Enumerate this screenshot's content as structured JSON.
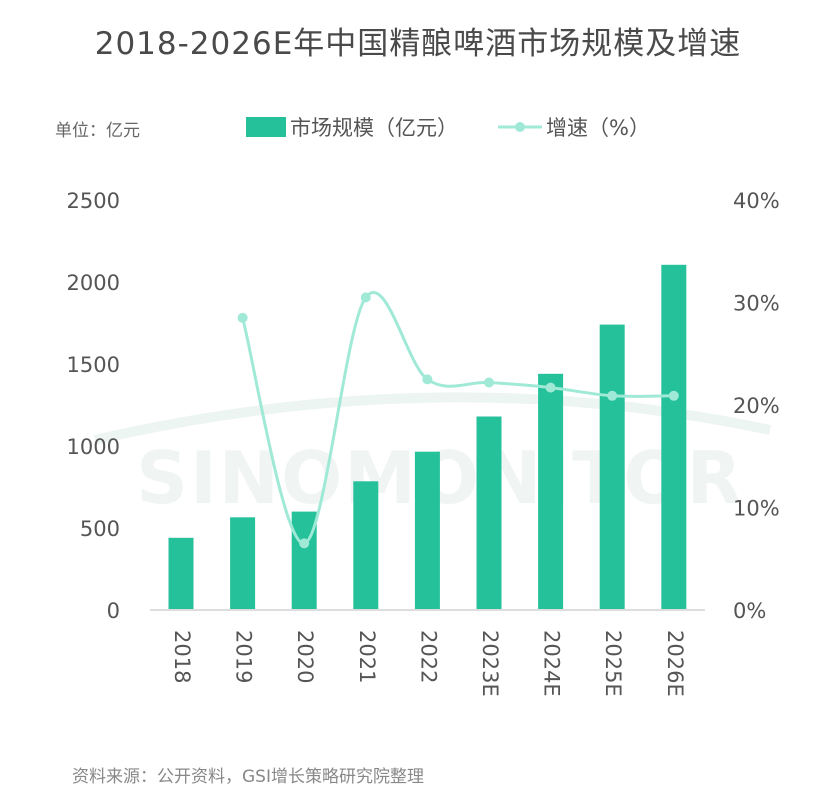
{
  "title": "2018-2026E年中国精酿啤酒市场规模及增速",
  "unit_label": "单位：亿元",
  "source": "资料来源：公开资料，GSI增长策略研究院整理",
  "watermark": "SINOMONITOR",
  "colors": {
    "bar": "#24c19b",
    "line": "#9fe9d6",
    "axis": "#dddddd"
  },
  "chart_data": {
    "type": "bar",
    "title": "2018-2026E年中国精酿啤酒市场规模及增速",
    "categories": [
      "2018",
      "2019",
      "2020",
      "2021",
      "2022",
      "2023E",
      "2024E",
      "2025E",
      "2026E"
    ],
    "series": [
      {
        "name": "市场规模（亿元）",
        "type": "bar",
        "axis": "left",
        "values": [
          440,
          565,
          600,
          785,
          965,
          1180,
          1440,
          1740,
          2105
        ]
      },
      {
        "name": "增速（%）",
        "type": "line",
        "axis": "right",
        "values": [
          null,
          28.5,
          6.5,
          30.5,
          22.5,
          22.2,
          21.7,
          20.9,
          20.9
        ]
      }
    ],
    "left_axis": {
      "ylim": [
        0,
        2500
      ],
      "ticks": [
        "0",
        "500",
        "1000",
        "1500",
        "2000",
        "2500"
      ]
    },
    "right_axis": {
      "ylim": [
        0,
        40
      ],
      "ticks": [
        "0%",
        "10%",
        "20%",
        "30%",
        "40%"
      ]
    },
    "legend": {
      "position": "top",
      "items": [
        "市场规模（亿元）",
        "增速（%）"
      ]
    },
    "grid": false
  }
}
